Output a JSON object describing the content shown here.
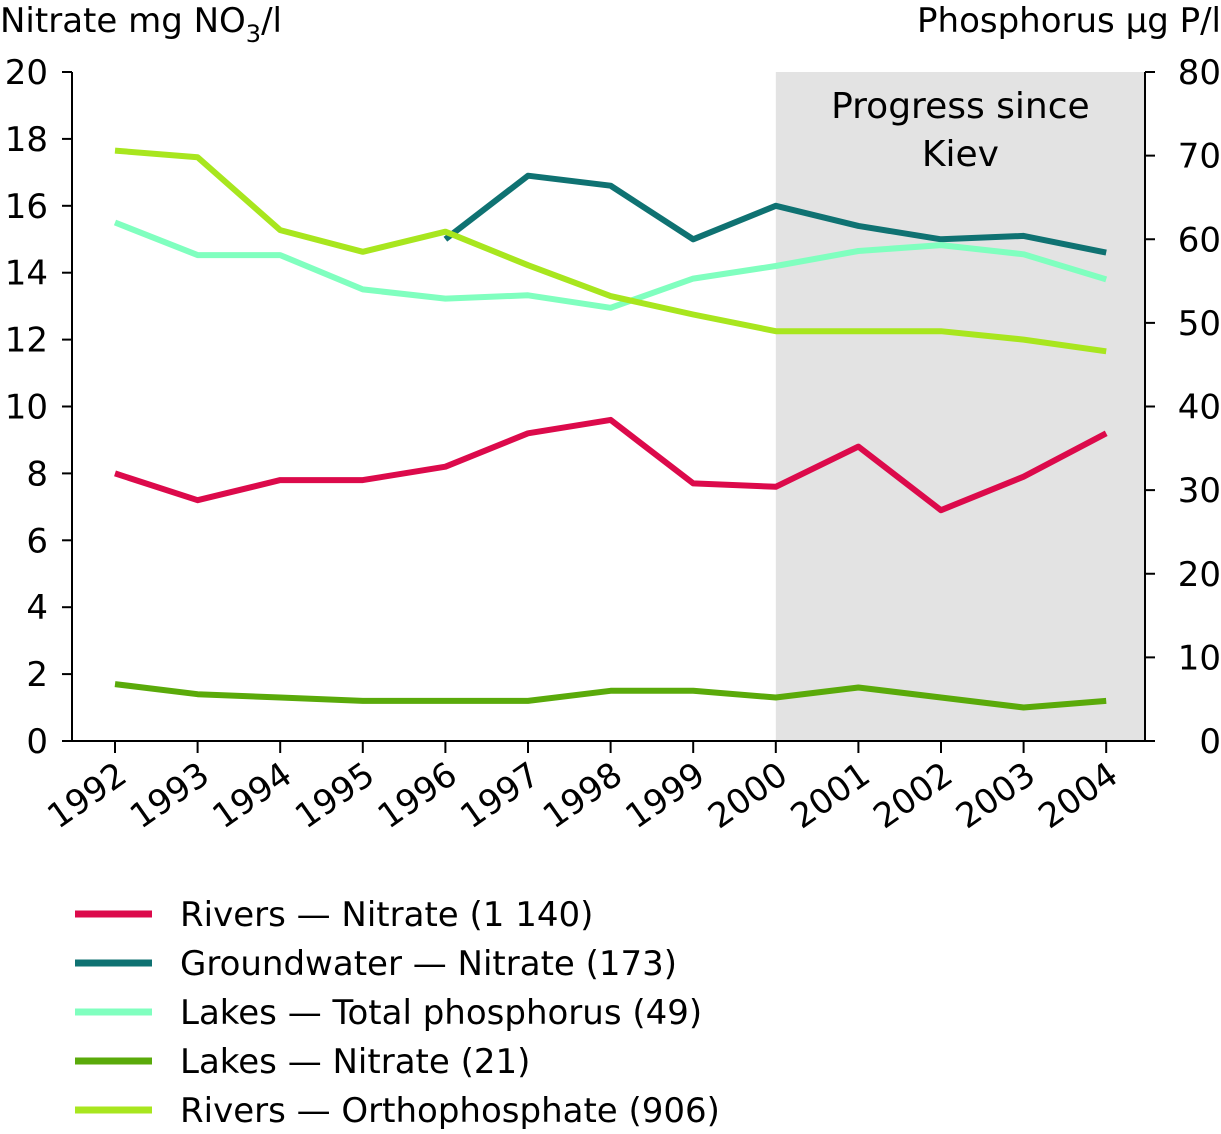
{
  "chart_data": {
    "type": "line",
    "left_axis": {
      "label_main": "Nitrate mg NO",
      "label_sub": "3",
      "label_tail": "/l",
      "ylim": [
        0,
        20
      ],
      "ticks": [
        0,
        2,
        4,
        6,
        8,
        10,
        12,
        14,
        16,
        18,
        20
      ]
    },
    "right_axis": {
      "label": "Phosphorus µg P/l",
      "ylim": [
        0,
        80
      ],
      "ticks": [
        0,
        10,
        20,
        30,
        40,
        50,
        60,
        70,
        80
      ]
    },
    "categories": [
      "1992",
      "1993",
      "1994",
      "1995",
      "1996",
      "1997",
      "1998",
      "1999",
      "2000",
      "2001",
      "2002",
      "2003",
      "2004"
    ],
    "shaded_region": {
      "from": "2000",
      "to": "2004",
      "line1": "Progress since",
      "line2": "Kiev",
      "color": "#e3e3e3"
    },
    "series": [
      {
        "name": "Rivers — Nitrate (1 140)",
        "axis": "left",
        "color": "#dc0a4b",
        "values": [
          8.0,
          7.2,
          7.8,
          7.8,
          8.2,
          9.2,
          9.6,
          7.7,
          7.6,
          8.8,
          6.9,
          7.9,
          9.2
        ]
      },
      {
        "name": "Groundwater — Nitrate (173)",
        "axis": "left",
        "color": "#0f7272",
        "values": [
          null,
          null,
          null,
          null,
          15.0,
          16.9,
          16.6,
          15.0,
          16.0,
          15.4,
          15.0,
          15.1,
          14.6
        ]
      },
      {
        "name": "Lakes — Total phosphorus (49)",
        "axis": "right",
        "color": "#80ffbf",
        "values": [
          62.0,
          58.1,
          58.1,
          54.0,
          52.9,
          53.3,
          51.8,
          55.3,
          56.8,
          58.6,
          59.3,
          58.2,
          55.2
        ]
      },
      {
        "name": "Lakes — Nitrate (21)",
        "axis": "left",
        "color": "#5aaa0a",
        "values": [
          1.7,
          1.4,
          1.3,
          1.2,
          1.2,
          1.2,
          1.5,
          1.5,
          1.3,
          1.6,
          1.3,
          1.0,
          1.2
        ]
      },
      {
        "name": "Rivers — Orthophosphate (906)",
        "axis": "right",
        "color": "#a8e61e",
        "values": [
          70.6,
          69.8,
          61.1,
          58.5,
          60.9,
          56.9,
          53.2,
          51.0,
          49.0,
          49.0,
          49.0,
          48.0,
          46.6
        ]
      }
    ],
    "legend_position": "bottom-left"
  }
}
